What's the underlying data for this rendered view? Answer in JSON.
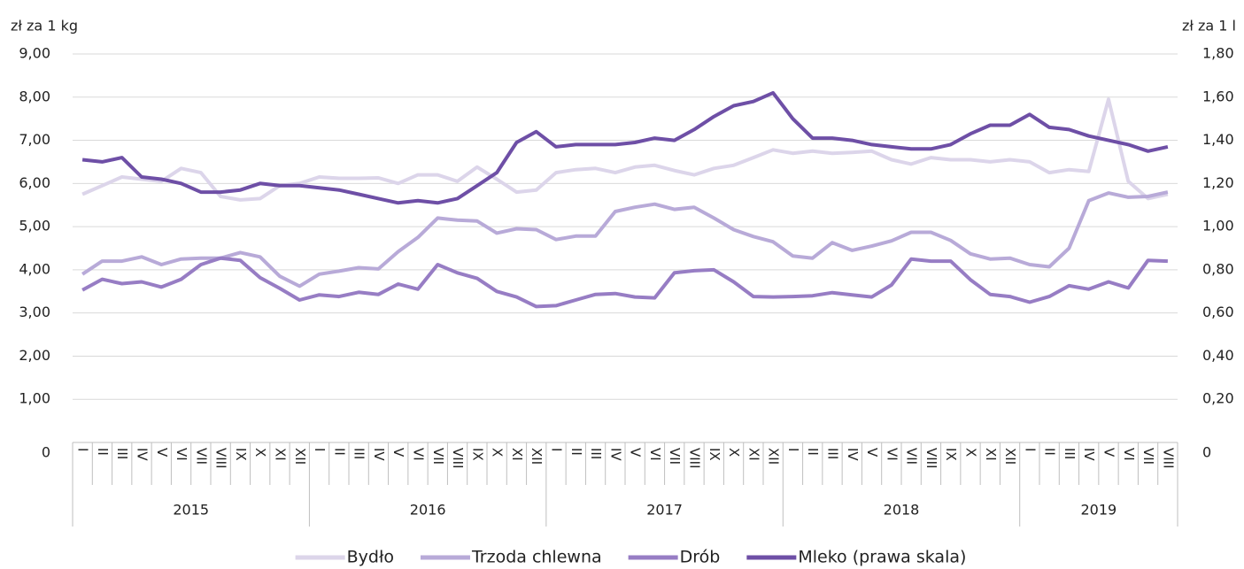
{
  "chart_data": {
    "type": "line",
    "y_label": "zł za 1 kg",
    "y2_label": "zł za 1 l",
    "categories": [
      "I",
      "II",
      "III",
      "IV",
      "V",
      "VI",
      "VII",
      "VIII",
      "IX",
      "X",
      "XI",
      "XII",
      "I",
      "II",
      "III",
      "IV",
      "V",
      "VI",
      "VII",
      "VIII",
      "IX",
      "X",
      "XI",
      "XII",
      "I",
      "II",
      "III",
      "IV",
      "V",
      "VI",
      "VII",
      "VIII",
      "IX",
      "X",
      "XI",
      "XII",
      "I",
      "II",
      "III",
      "IV",
      "V",
      "VI",
      "VII",
      "VIII",
      "IX",
      "X",
      "XI",
      "XII",
      "I",
      "II",
      "III",
      "IV",
      "V",
      "VI",
      "VII",
      "VIII"
    ],
    "category_groups": [
      "2015",
      "2016",
      "2017",
      "2018",
      "2019"
    ],
    "series": [
      {
        "name": "Bydło",
        "color": "#dcd5ea",
        "values": [
          5.75,
          5.95,
          6.15,
          6.1,
          6.05,
          6.35,
          6.25,
          5.7,
          5.62,
          5.65,
          5.95,
          6.0,
          6.15,
          6.12,
          6.12,
          6.13,
          6.0,
          6.2,
          6.2,
          6.05,
          6.38,
          6.1,
          5.8,
          5.85,
          6.25,
          6.32,
          6.35,
          6.25,
          6.38,
          6.42,
          6.3,
          6.2,
          6.35,
          6.42,
          6.6,
          6.78,
          6.7,
          6.75,
          6.7,
          6.72,
          6.75,
          6.55,
          6.45,
          6.6,
          6.55,
          6.55,
          6.5,
          6.55,
          6.5,
          6.25,
          6.32,
          6.28,
          7.95,
          6.05,
          5.65,
          5.75
        ]
      },
      {
        "name": "Trzoda chlewna",
        "color": "#b8aad8",
        "values": [
          3.9,
          4.2,
          4.2,
          4.3,
          4.12,
          4.25,
          4.27,
          4.27,
          4.4,
          4.3,
          3.85,
          3.62,
          3.9,
          3.97,
          4.05,
          4.02,
          4.42,
          4.75,
          5.2,
          5.15,
          5.13,
          4.85,
          4.95,
          4.93,
          4.7,
          4.78,
          4.78,
          5.35,
          5.45,
          5.52,
          5.4,
          5.45,
          5.2,
          4.93,
          4.77,
          4.65,
          4.32,
          4.27,
          4.63,
          4.45,
          4.55,
          4.67,
          4.87,
          4.87,
          4.68,
          4.37,
          4.25,
          4.27,
          4.12,
          4.07,
          4.5,
          5.6,
          5.78,
          5.68,
          5.7,
          5.8
        ]
      },
      {
        "name": "Drób",
        "color": "#977dc4",
        "values": [
          3.53,
          3.78,
          3.68,
          3.72,
          3.6,
          3.78,
          4.12,
          4.27,
          4.22,
          3.82,
          3.57,
          3.3,
          3.42,
          3.38,
          3.48,
          3.43,
          3.67,
          3.55,
          4.12,
          3.93,
          3.8,
          3.5,
          3.37,
          3.15,
          3.17,
          3.3,
          3.43,
          3.45,
          3.37,
          3.35,
          3.93,
          3.98,
          4.0,
          3.72,
          3.38,
          3.37,
          3.38,
          3.4,
          3.47,
          3.42,
          3.37,
          3.65,
          4.25,
          4.2,
          4.2,
          3.77,
          3.43,
          3.38,
          3.25,
          3.38,
          3.63,
          3.55,
          3.72,
          3.58,
          4.22,
          4.2
        ]
      },
      {
        "name": "Mleko (prawa skala)",
        "color": "#6e4fa6",
        "axis": "y2",
        "values": [
          1.31,
          1.3,
          1.32,
          1.23,
          1.22,
          1.2,
          1.16,
          1.16,
          1.17,
          1.2,
          1.19,
          1.19,
          1.18,
          1.17,
          1.15,
          1.13,
          1.11,
          1.12,
          1.11,
          1.13,
          1.19,
          1.25,
          1.39,
          1.44,
          1.37,
          1.38,
          1.38,
          1.38,
          1.39,
          1.41,
          1.4,
          1.45,
          1.51,
          1.56,
          1.58,
          1.62,
          1.5,
          1.41,
          1.41,
          1.4,
          1.38,
          1.37,
          1.36,
          1.36,
          1.38,
          1.43,
          1.47,
          1.47,
          1.52,
          1.46,
          1.45,
          1.42,
          1.4,
          1.38,
          1.35,
          1.37
        ]
      }
    ],
    "ylim": [
      0,
      9
    ],
    "yticks": [
      0,
      {
        "value": 1,
        "label": "1,00"
      },
      {
        "value": 2,
        "label": "2,00"
      },
      {
        "value": 3,
        "label": "3,00"
      },
      {
        "value": 4,
        "label": "4,00"
      },
      {
        "value": 5,
        "label": "5,00"
      },
      {
        "value": 6,
        "label": "6,00"
      },
      {
        "value": 7,
        "label": "7,00"
      },
      {
        "value": 8,
        "label": "8,00"
      },
      {
        "value": 9,
        "label": "9,00"
      }
    ],
    "y2lim": [
      0,
      1.8
    ],
    "y2ticks": [
      0,
      {
        "value": 0.2,
        "label": "0,20"
      },
      {
        "value": 0.4,
        "label": "0,40"
      },
      {
        "value": 0.6,
        "label": "0,60"
      },
      {
        "value": 0.8,
        "label": "0,80"
      },
      {
        "value": 1.0,
        "label": "1,00"
      },
      {
        "value": 1.2,
        "label": "1,20"
      },
      {
        "value": 1.4,
        "label": "1,40"
      },
      {
        "value": 1.6,
        "label": "1,60"
      },
      {
        "value": 1.8,
        "label": "1,80"
      }
    ],
    "grid": true,
    "legend": "bottom"
  }
}
